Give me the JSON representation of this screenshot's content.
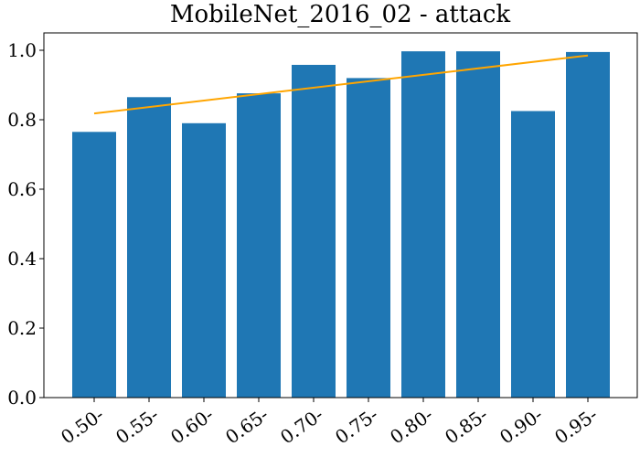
{
  "chart_data": {
    "type": "bar",
    "title": "MobileNet_2016_02 - attack",
    "xlabel": "",
    "ylabel": "",
    "categories": [
      "0.50-",
      "0.55-",
      "0.60-",
      "0.65-",
      "0.70-",
      "0.75-",
      "0.80-",
      "0.85-",
      "0.90-",
      "0.95-"
    ],
    "values": [
      0.765,
      0.865,
      0.79,
      0.876,
      0.958,
      0.92,
      0.997,
      0.997,
      0.825,
      0.995
    ],
    "trend_line": {
      "start": 0.818,
      "end": 0.985
    },
    "ylim": [
      0,
      1.05
    ],
    "yticks": [
      0.0,
      0.2,
      0.4,
      0.6,
      0.8,
      1.0
    ],
    "ytick_labels": [
      "0.0",
      "0.2",
      "0.4",
      "0.6",
      "0.8",
      "1.0"
    ],
    "grid": false,
    "legend": "none",
    "bar_color": "#1f77b4",
    "trend_color": "#ffa500"
  }
}
